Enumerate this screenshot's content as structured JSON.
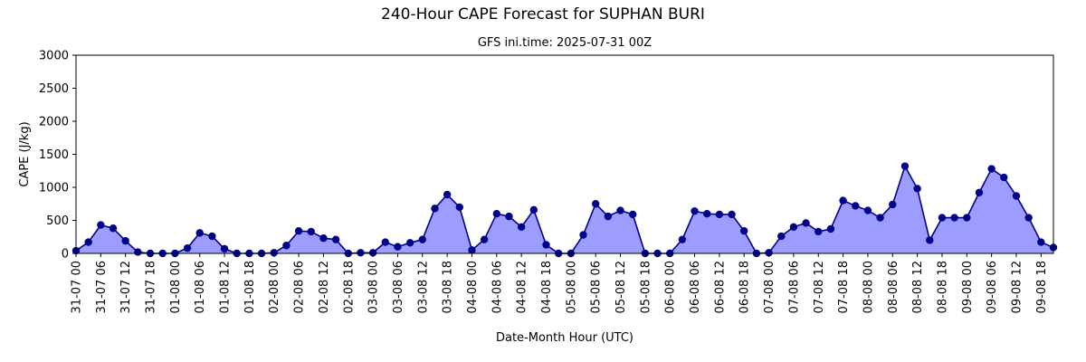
{
  "chart_data": {
    "type": "area",
    "title": "240-Hour CAPE Forecast for SUPHAN BURI",
    "subtitle": "GFS ini.time: 2025-07-31 00Z",
    "xlabel": "Date-Month Hour (UTC)",
    "ylabel": "CAPE (J/kg)",
    "ylim": [
      0,
      3000
    ],
    "yticks": [
      0,
      500,
      1000,
      1500,
      2000,
      2500,
      3000
    ],
    "x_step_hours": 3,
    "x_tick_labels": [
      "31-07 00",
      "31-07 06",
      "31-07 12",
      "31-07 18",
      "01-08 00",
      "01-08 06",
      "01-08 12",
      "01-08 18",
      "02-08 00",
      "02-08 06",
      "02-08 12",
      "02-08 18",
      "03-08 00",
      "03-08 06",
      "03-08 12",
      "03-08 18",
      "04-08 00",
      "04-08 06",
      "04-08 12",
      "04-08 18",
      "05-08 00",
      "05-08 06",
      "05-08 12",
      "05-08 18",
      "06-08 00",
      "06-08 06",
      "06-08 12",
      "06-08 18",
      "07-08 00",
      "07-08 06",
      "07-08 12",
      "07-08 18",
      "08-08 00",
      "08-08 06",
      "08-08 12",
      "08-08 18",
      "09-08 00",
      "09-08 06",
      "09-08 12",
      "09-08 18"
    ],
    "values": [
      40,
      170,
      430,
      380,
      190,
      20,
      0,
      0,
      0,
      80,
      310,
      260,
      70,
      0,
      0,
      0,
      10,
      120,
      340,
      330,
      230,
      210,
      0,
      10,
      10,
      170,
      100,
      160,
      210,
      680,
      890,
      700,
      50,
      210,
      600,
      560,
      400,
      660,
      130,
      0,
      0,
      280,
      750,
      560,
      650,
      590,
      0,
      0,
      0,
      210,
      640,
      600,
      590,
      590,
      340,
      0,
      10,
      260,
      400,
      460,
      330,
      370,
      800,
      720,
      650,
      540,
      740,
      1320,
      980,
      200,
      540,
      540,
      540,
      920,
      1280,
      1150,
      870,
      540,
      170,
      90
    ],
    "series_color": "#00008b",
    "fill_color": "#9d9dff",
    "grid": false,
    "legend": "none"
  }
}
